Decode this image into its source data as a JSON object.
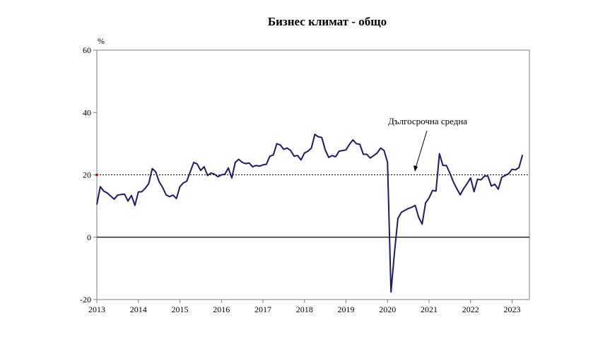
{
  "chart_data": {
    "type": "line",
    "title": "Бизнес климат - общо",
    "ylabel": "%",
    "xlabel": "",
    "ylim": [
      -20,
      60
    ],
    "xlim": [
      2013,
      2023.4167
    ],
    "yticks": [
      -20,
      0,
      20,
      40,
      60
    ],
    "xticks": [
      "2013",
      "2014",
      "2015",
      "2016",
      "2017",
      "2018",
      "2019",
      "2020",
      "2021",
      "2022",
      "2023"
    ],
    "grid": false,
    "reference_line": {
      "value": 0
    },
    "long_term_average": {
      "label": "Дългосрочна средна",
      "value": 20
    },
    "series": [
      {
        "color": "#1a1a6e",
        "x_start": "2013-01",
        "frequency": "monthly",
        "values": [
          10.5,
          16.2,
          14.8,
          14.2,
          13.2,
          12.2,
          13.5,
          13.7,
          13.8,
          11.6,
          13.4,
          10.2,
          14.5,
          14.6,
          15.7,
          17.2,
          22.0,
          21.0,
          17.8,
          16.0,
          13.6,
          13.0,
          13.5,
          12.4,
          16.2,
          17.4,
          18.0,
          21.0,
          24.0,
          23.5,
          21.4,
          22.6,
          19.8,
          20.6,
          20.2,
          19.4,
          20.0,
          20.2,
          22.2,
          19.0,
          24.0,
          25.0,
          24.0,
          23.6,
          23.8,
          22.6,
          23.0,
          22.8,
          23.2,
          23.4,
          26.0,
          26.4,
          30.0,
          29.6,
          28.2,
          28.6,
          27.8,
          26.0,
          26.2,
          24.8,
          27.0,
          27.6,
          28.6,
          33.0,
          32.2,
          32.0,
          28.0,
          25.6,
          26.2,
          25.8,
          27.6,
          27.8,
          28.0,
          29.8,
          31.2,
          30.0,
          29.8,
          26.6,
          26.6,
          25.4,
          26.2,
          27.0,
          28.6,
          27.8,
          24.0,
          -17.6,
          -5.0,
          6.0,
          8.0,
          8.6,
          9.2,
          9.6,
          10.2,
          6.4,
          4.2,
          11.0,
          12.6,
          15.0,
          14.8,
          26.8,
          23.0,
          23.0,
          20.6,
          17.8,
          15.6,
          13.6,
          15.6,
          17.2,
          19.0,
          14.6,
          18.6,
          18.4,
          19.6,
          19.6,
          16.4,
          17.0,
          15.4,
          19.2,
          19.8,
          20.4,
          21.8,
          21.6,
          22.4,
          26.4
        ]
      }
    ]
  }
}
